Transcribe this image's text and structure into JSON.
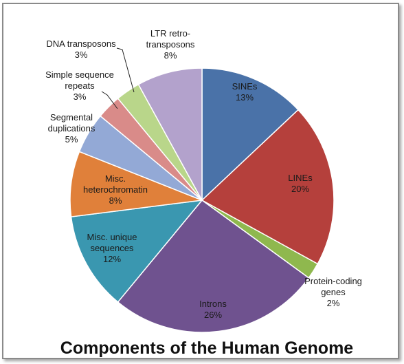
{
  "chart_data": {
    "type": "pie",
    "title": "Components of the Human Genome",
    "slices": [
      {
        "lines": [
          "SINEs",
          "13%"
        ],
        "value": 13,
        "color": "#4a72a8"
      },
      {
        "lines": [
          "LINEs",
          "20%"
        ],
        "value": 20,
        "color": "#b5403c"
      },
      {
        "lines": [
          "Protein-coding",
          "genes",
          "2%"
        ],
        "value": 2,
        "color": "#8fb84e"
      },
      {
        "lines": [
          "Introns",
          "26%"
        ],
        "value": 26,
        "color": "#6f528f"
      },
      {
        "lines": [
          "Misc. unique",
          "sequences",
          "12%"
        ],
        "value": 12,
        "color": "#3a97b0"
      },
      {
        "lines": [
          "Misc.",
          "heterochromatin",
          "8%"
        ],
        "value": 8,
        "color": "#e0803a"
      },
      {
        "lines": [
          "Segmental",
          "duplications",
          "5%"
        ],
        "value": 5,
        "color": "#93a9d6"
      },
      {
        "lines": [
          "Simple sequence",
          "repeats",
          "3%"
        ],
        "value": 3,
        "color": "#d98b89"
      },
      {
        "lines": [
          "DNA transposons",
          "3%"
        ],
        "value": 3,
        "color": "#b9d68a"
      },
      {
        "lines": [
          "LTR retro-",
          "transposons",
          "8%"
        ],
        "value": 8,
        "color": "#b3a2cc"
      }
    ]
  }
}
